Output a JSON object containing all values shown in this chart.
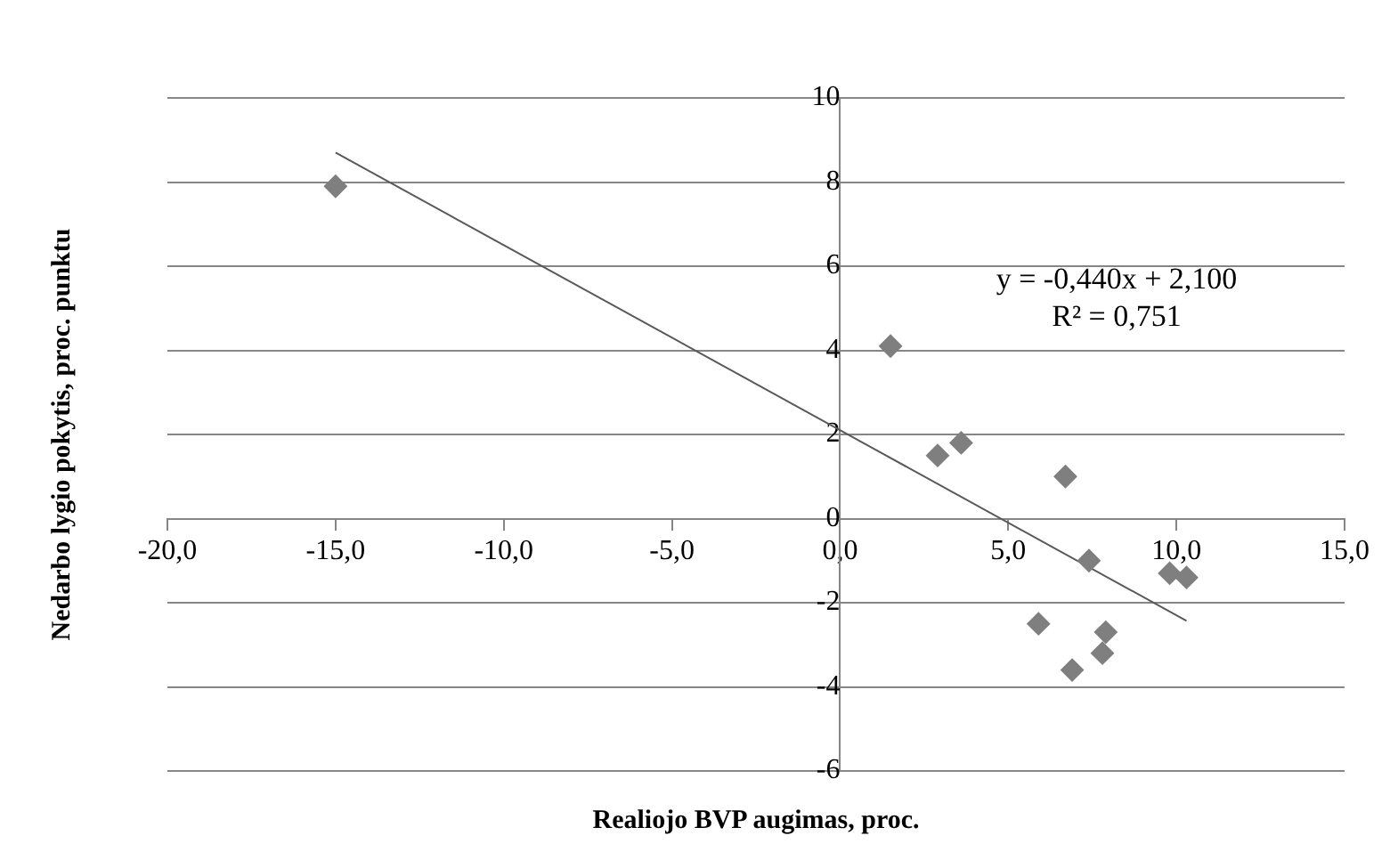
{
  "chart_data": {
    "type": "scatter",
    "xlabel": "Realiojo BVP augimas, proc.",
    "ylabel": "Nedarbo lygio pokytis, proc. punktu",
    "annotations": [
      "y = -0,440x + 2,100",
      "R² = 0,751"
    ],
    "series": [
      {
        "type": "scatter",
        "marker": "diamond",
        "color": "#7f7f7f",
        "x": [
          -15,
          1.5,
          2.9,
          3.6,
          6.7,
          7.4,
          9.8,
          10.3,
          5.9,
          7.9,
          7.8,
          6.9
        ],
        "values": [
          7.9,
          4.1,
          1.5,
          1.8,
          1.0,
          -1.0,
          -1.3,
          -1.4,
          -2.5,
          -2.7,
          -3.2,
          -3.6
        ]
      },
      {
        "type": "line",
        "marker": "none",
        "color": "#595959",
        "x": [
          -15,
          10.3
        ],
        "values": [
          8.7,
          -2.43
        ]
      }
    ],
    "xlim": [
      -20,
      15
    ],
    "xticks": [
      {
        "value": -20,
        "label": "-20,0"
      },
      {
        "value": -15,
        "label": "-15,0"
      },
      {
        "value": -10,
        "label": "-10,0"
      },
      {
        "value": -5,
        "label": "-5,0"
      },
      {
        "value": 0,
        "label": "0,0"
      },
      {
        "value": 5,
        "label": "5,0"
      },
      {
        "value": 10,
        "label": "10,0"
      },
      {
        "value": 15,
        "label": "15,0"
      }
    ],
    "ylim": [
      -6,
      10
    ],
    "yticks": [
      -6,
      -4,
      -2,
      0,
      2,
      4,
      6,
      8,
      10
    ],
    "grid": "y",
    "legend": false,
    "line_style": "solid"
  }
}
